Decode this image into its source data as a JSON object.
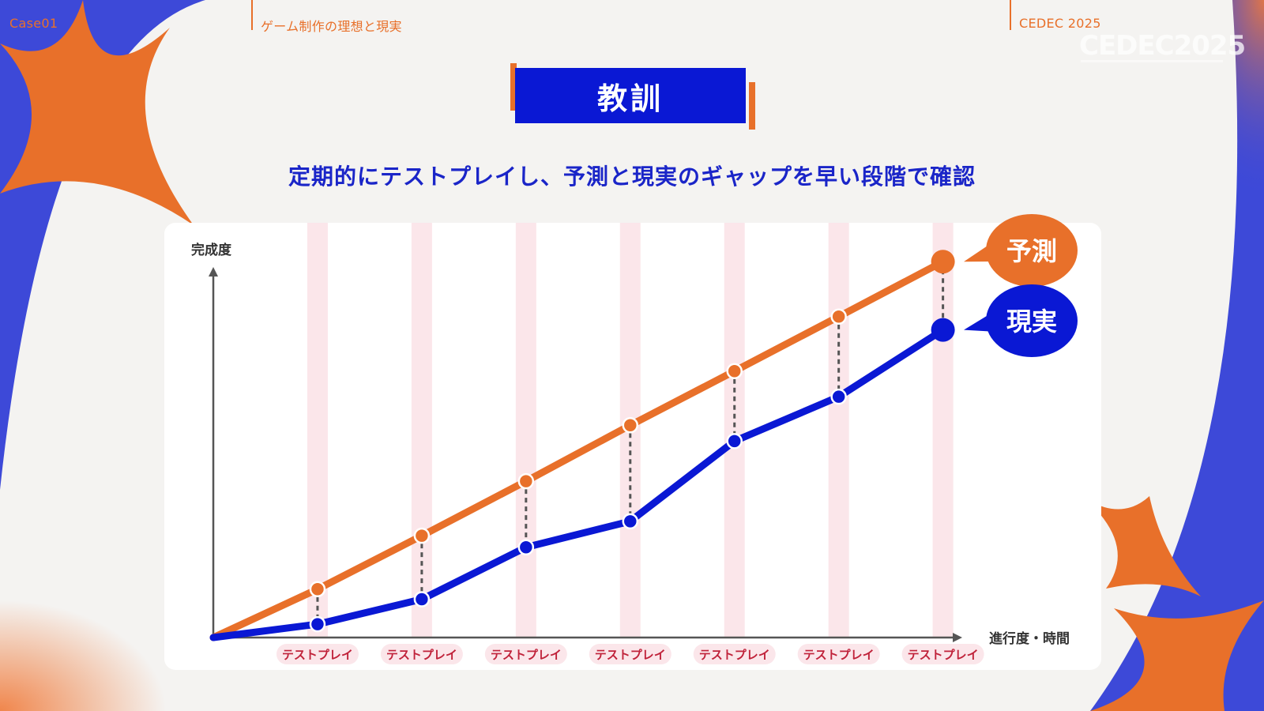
{
  "header": {
    "case_label": "Case01",
    "section_title": "ゲーム制作の理想と現実",
    "event_name": "CEDEC 2025",
    "event_logo": "CEDEC2025"
  },
  "slide": {
    "title": "教訓",
    "subtitle": "定期的にテストプレイし、予測と現実のギャップを早い段階で確認"
  },
  "colors": {
    "background": "#3d49d8",
    "accent_orange": "#e8702a",
    "accent_blue": "#0a18d4",
    "band_pink": "#fbe6ea",
    "axis_gray": "#555555"
  },
  "chart_data": {
    "type": "line",
    "ylabel": "完成度",
    "xlabel": "進行度・時間",
    "categories": [
      "テストプレイ",
      "テストプレイ",
      "テストプレイ",
      "テストプレイ",
      "テストプレイ",
      "テストプレイ",
      "テストプレイ"
    ],
    "x": [
      0,
      1,
      2,
      3,
      4,
      5,
      6,
      7
    ],
    "xlim": [
      0,
      7.2
    ],
    "ylim": [
      0,
      100
    ],
    "series": [
      {
        "name": "予測",
        "color": "#e8702a",
        "values": [
          0,
          13.4,
          28.2,
          43.3,
          58.8,
          73.8,
          88.9,
          104.1
        ]
      },
      {
        "name": "現実",
        "color": "#0a18d4",
        "values": [
          0,
          3.7,
          10.6,
          25.0,
          32.2,
          54.4,
          66.7,
          85.2
        ]
      }
    ],
    "gap_markers": "dashed vertical lines between series at each test play",
    "grid": false
  }
}
